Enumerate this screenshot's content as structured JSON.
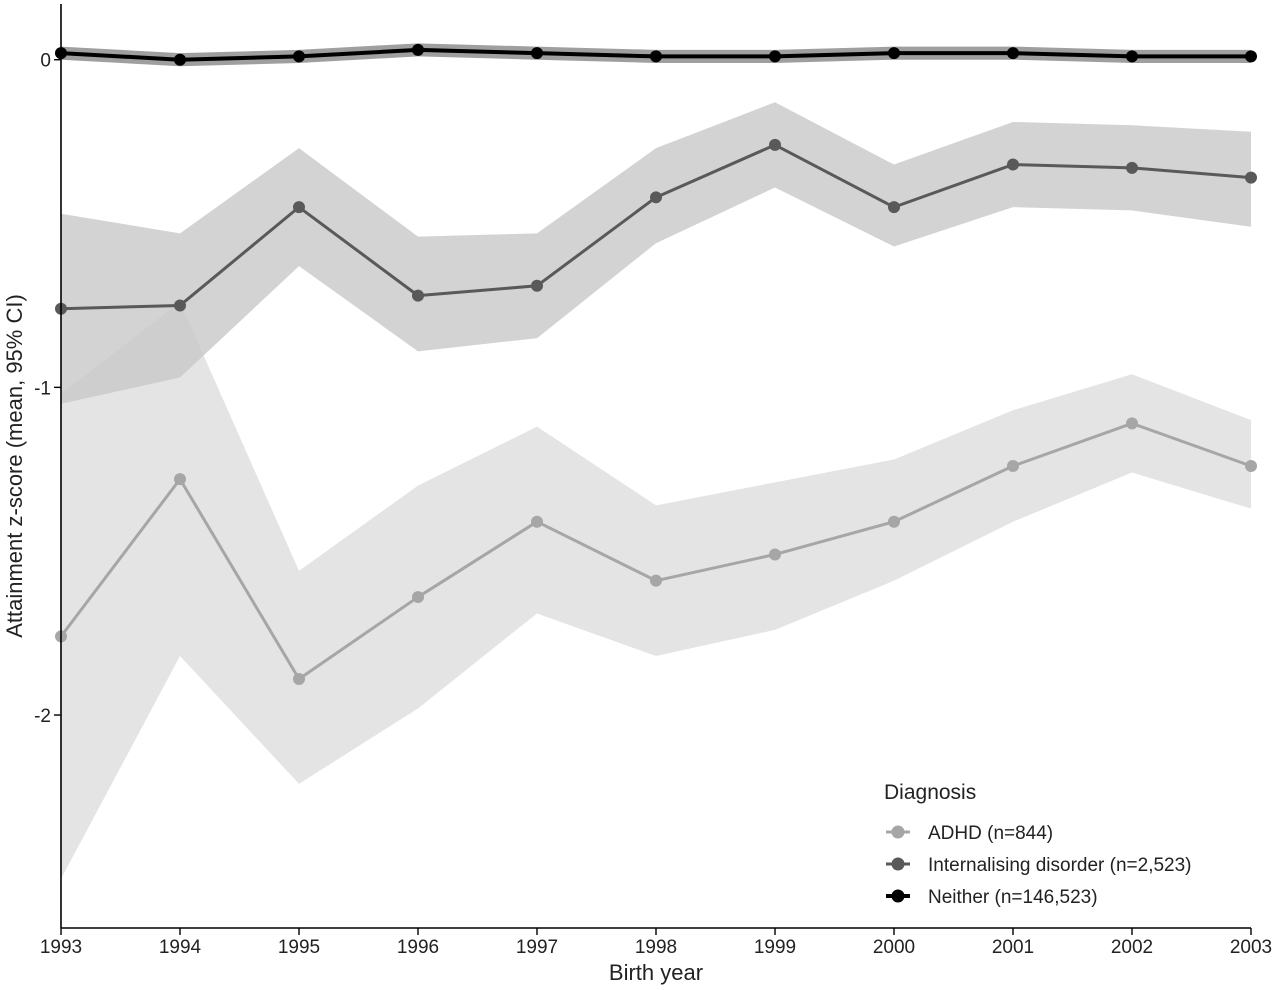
{
  "chart_data": {
    "type": "line",
    "title": "",
    "xlabel": "Birth year",
    "ylabel": "Attainment z-score (mean, 95% CI)",
    "x": [
      1993,
      1994,
      1995,
      1996,
      1997,
      1998,
      1999,
      2000,
      2001,
      2002,
      2003
    ],
    "xlim": [
      1993,
      2003
    ],
    "ylim": [
      -2.65,
      0.17
    ],
    "y_ticks": [
      0,
      -1,
      -2
    ],
    "y_tick_labels": [
      "0",
      "-1",
      "-2"
    ],
    "x_tick_labels": [
      "1993",
      "1994",
      "1995",
      "1996",
      "1997",
      "1998",
      "1999",
      "2000",
      "2001",
      "2002",
      "2003"
    ],
    "grid": false,
    "legend": {
      "title": "Diagnosis",
      "placement": "bottom-right"
    },
    "series": [
      {
        "name": "ADHD (n=844)",
        "color": "#a6a6a6",
        "band_color": "#e3e3e3",
        "values": [
          -1.76,
          -1.28,
          -1.89,
          -1.64,
          -1.41,
          -1.59,
          -1.51,
          -1.41,
          -1.24,
          -1.11,
          -1.24
        ],
        "lower": [
          -2.5,
          -1.82,
          -2.21,
          -1.98,
          -1.69,
          -1.82,
          -1.74,
          -1.59,
          -1.41,
          -1.26,
          -1.37
        ],
        "upper": [
          -1.02,
          -0.74,
          -1.56,
          -1.3,
          -1.12,
          -1.36,
          -1.29,
          -1.22,
          -1.07,
          -0.96,
          -1.1
        ]
      },
      {
        "name": "Internalising disorder (n=2,523)",
        "color": "#595959",
        "band_color": "#c9c9c9",
        "values": [
          -0.76,
          -0.75,
          -0.45,
          -0.72,
          -0.69,
          -0.42,
          -0.26,
          -0.45,
          -0.32,
          -0.33,
          -0.36
        ],
        "lower": [
          -1.05,
          -0.97,
          -0.63,
          -0.89,
          -0.85,
          -0.56,
          -0.39,
          -0.57,
          -0.45,
          -0.46,
          -0.51
        ],
        "upper": [
          -0.47,
          -0.53,
          -0.27,
          -0.54,
          -0.53,
          -0.27,
          -0.13,
          -0.32,
          -0.19,
          -0.2,
          -0.22
        ]
      },
      {
        "name": "Neither (n=146,523)",
        "color": "#000000",
        "band_color": "#9a9a9a",
        "values": [
          0.02,
          0.0,
          0.01,
          0.03,
          0.02,
          0.01,
          0.01,
          0.02,
          0.02,
          0.01,
          0.01
        ],
        "lower": [
          0.0,
          -0.02,
          -0.01,
          0.01,
          0.0,
          -0.01,
          -0.01,
          0.0,
          0.0,
          -0.01,
          -0.01
        ],
        "upper": [
          0.04,
          0.02,
          0.03,
          0.05,
          0.04,
          0.03,
          0.03,
          0.04,
          0.04,
          0.03,
          0.03
        ]
      }
    ]
  }
}
